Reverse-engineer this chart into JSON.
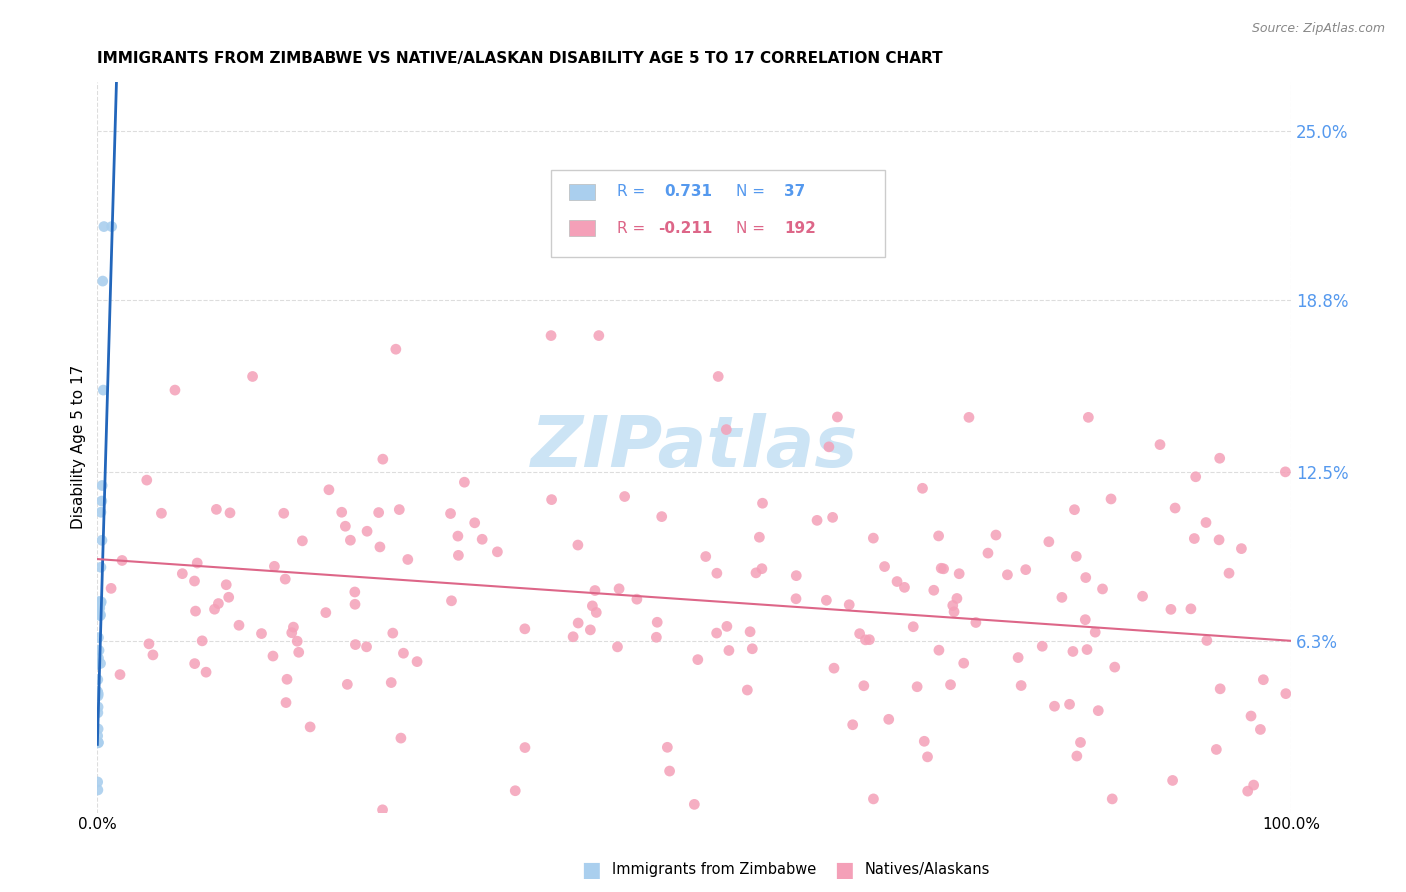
{
  "title": "IMMIGRANTS FROM ZIMBABWE VS NATIVE/ALASKAN DISABILITY AGE 5 TO 17 CORRELATION CHART",
  "source": "Source: ZipAtlas.com",
  "ylabel": "Disability Age 5 to 17",
  "ytick_vals": [
    0.063,
    0.125,
    0.188,
    0.25
  ],
  "ytick_labels": [
    "6.3%",
    "12.5%",
    "18.8%",
    "25.0%"
  ],
  "xtick_vals": [
    0.0,
    1.0
  ],
  "xtick_labels": [
    "0.0%",
    "100.0%"
  ],
  "xlim": [
    0.0,
    1.0
  ],
  "ylim": [
    0.0,
    0.268
  ],
  "blue_color": "#aacfee",
  "pink_color": "#f4a0b8",
  "line_blue_color": "#2266bb",
  "line_pink_color": "#dd6688",
  "watermark_color": "#cce4f5",
  "tick_color": "#5599ee",
  "r_blue": 0.731,
  "n_blue": 37,
  "r_pink": -0.211,
  "n_pink": 192,
  "blue_line_x0": 0.0,
  "blue_line_y0": 0.025,
  "blue_line_x1": 0.016,
  "blue_line_y1": 0.268,
  "pink_line_x0": 0.0,
  "pink_line_y0": 0.093,
  "pink_line_x1": 1.0,
  "pink_line_y1": 0.063
}
